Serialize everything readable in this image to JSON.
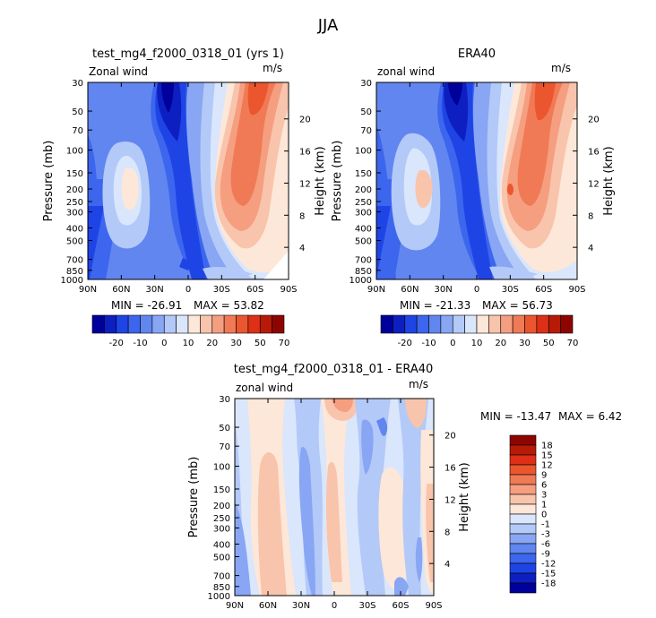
{
  "figure_title": "JJA",
  "colors": {
    "blue": [
      "#00009a",
      "#0d1fc0",
      "#1f44e6",
      "#3d66ee",
      "#6186f0",
      "#88a6f3",
      "#b3c9f8",
      "#d9e6fc"
    ],
    "red": [
      "#fde7d9",
      "#f9c4ac",
      "#f59e80",
      "#f07a55",
      "#eb562f",
      "#dd3016",
      "#b81a08",
      "#8e0400"
    ]
  },
  "chart_data": [
    {
      "id": "model",
      "type": "heatmap",
      "title": "test_mg4_f2000_0318_01 (yrs 1)",
      "field_label": "Zonal wind",
      "units_label": "m/s",
      "ylabel": "Pressure (mb)",
      "ylabel_right": "Height (km)",
      "x_ticks": [
        "90N",
        "60N",
        "30N",
        "0",
        "30S",
        "60S",
        "90S"
      ],
      "y_ticks": [
        "30",
        "50",
        "70",
        "100",
        "150",
        "200",
        "250",
        "300",
        "400",
        "500",
        "700",
        "850",
        "1000"
      ],
      "height_ticks": [
        "20",
        "16",
        "12",
        "8",
        "4"
      ],
      "min_label": "MIN = -26.91",
      "max_label": "MAX = 53.82",
      "colorbar_labels": [
        "-20",
        "-10",
        "0",
        "10",
        "20",
        "30",
        "50",
        "70"
      ]
    },
    {
      "id": "obs",
      "type": "heatmap",
      "title": "ERA40",
      "field_label": "zonal wind",
      "units_label": "m/s",
      "ylabel": "Pressure (mb)",
      "ylabel_right": "Height (km)",
      "x_ticks": [
        "90N",
        "60N",
        "30N",
        "0",
        "30S",
        "60S",
        "90S"
      ],
      "y_ticks": [
        "30",
        "50",
        "70",
        "100",
        "150",
        "200",
        "250",
        "300",
        "400",
        "500",
        "700",
        "850",
        "1000"
      ],
      "height_ticks": [
        "20",
        "16",
        "12",
        "8",
        "4"
      ],
      "min_label": "MIN = -21.33",
      "max_label": "MAX = 56.73",
      "colorbar_labels": [
        "-20",
        "-10",
        "0",
        "10",
        "20",
        "30",
        "50",
        "70"
      ]
    },
    {
      "id": "diff",
      "type": "heatmap",
      "title": "test_mg4_f2000_0318_01 - ERA40",
      "field_label": "zonal wind",
      "units_label": "m/s",
      "ylabel": "Pressure (mb)",
      "ylabel_right": "Height (km)",
      "x_ticks": [
        "90N",
        "60N",
        "30N",
        "0",
        "30S",
        "60S",
        "90S"
      ],
      "y_ticks": [
        "30",
        "50",
        "70",
        "100",
        "150",
        "200",
        "250",
        "300",
        "400",
        "500",
        "700",
        "850",
        "1000"
      ],
      "height_ticks": [
        "20",
        "16",
        "12",
        "8",
        "4"
      ],
      "min_label": "MIN = -13.47",
      "max_label": "MAX =   6.42",
      "colorbar_labels": [
        "18",
        "15",
        "12",
        "9",
        "6",
        "3",
        "1",
        "0",
        "-1",
        "-3",
        "-6",
        "-9",
        "-12",
        "-15",
        "-18"
      ]
    }
  ]
}
